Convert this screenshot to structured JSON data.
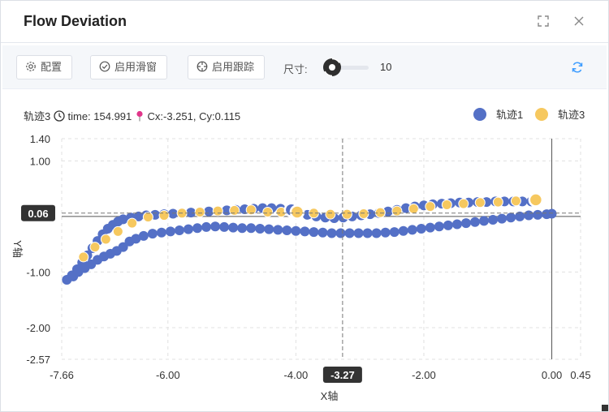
{
  "window": {
    "title": "Flow Deviation"
  },
  "toolbar": {
    "config_label": "配置",
    "slide_label": "启用滑窗",
    "track_label": "启用跟踪",
    "size_label": "尺寸:",
    "size_value": "10",
    "size_fraction": 0.2
  },
  "info": {
    "track": "轨迹3",
    "time": "time: 154.991",
    "coords": "Cx:-3.251, Cy:0.115"
  },
  "colors": {
    "series1": "#5470c6",
    "series2": "#f6c85f",
    "accent": "#409eff"
  },
  "chart_data": {
    "type": "scatter",
    "xlabel": "X轴",
    "ylabel": "Y轴",
    "xlim": [
      -7.66,
      0.45
    ],
    "ylim": [
      -2.57,
      1.4
    ],
    "x_ticks": [
      "-7.66",
      "-6.00",
      "-4.00",
      "-2.00",
      "0.00",
      "0.45"
    ],
    "y_ticks": [
      "1.40",
      "1.00",
      "-1.00",
      "-2.00",
      "-2.57"
    ],
    "grid": true,
    "legend_position": "top-right",
    "legend": [
      "轨迹1",
      "轨迹3"
    ],
    "pointer_x": "-3.27",
    "pointer_y": "0.06",
    "pointer_x_value": -3.27,
    "pointer_y_value": 0.06,
    "series": [
      {
        "name": "轨迹1",
        "color": "#5470c6",
        "outer": [
          [
            -7.58,
            -1.14
          ],
          [
            -7.5,
            -1.06
          ],
          [
            -7.42,
            -0.95
          ],
          [
            -7.34,
            -0.83
          ],
          [
            -7.26,
            -0.7
          ],
          [
            -7.18,
            -0.57
          ],
          [
            -7.1,
            -0.44
          ],
          [
            -7.02,
            -0.32
          ],
          [
            -6.94,
            -0.22
          ],
          [
            -6.86,
            -0.15
          ],
          [
            -6.78,
            -0.09
          ],
          [
            -6.7,
            -0.05
          ],
          [
            -6.58,
            -0.02
          ],
          [
            -6.46,
            0.0
          ],
          [
            -6.34,
            0.02
          ],
          [
            -6.2,
            0.03
          ],
          [
            -6.06,
            0.04
          ],
          [
            -5.92,
            0.05
          ],
          [
            -5.78,
            0.06
          ],
          [
            -5.64,
            0.07
          ],
          [
            -5.5,
            0.08
          ],
          [
            -5.36,
            0.09
          ],
          [
            -5.22,
            0.1
          ],
          [
            -5.08,
            0.11
          ],
          [
            -4.94,
            0.12
          ],
          [
            -4.8,
            0.13
          ],
          [
            -4.66,
            0.14
          ],
          [
            -4.52,
            0.15
          ],
          [
            -4.38,
            0.15
          ],
          [
            -4.24,
            0.14
          ],
          [
            -4.1,
            0.11
          ],
          [
            -3.96,
            0.07
          ],
          [
            -3.82,
            0.03
          ],
          [
            -3.68,
            0.0
          ],
          [
            -3.54,
            -0.02
          ],
          [
            -3.4,
            -0.03
          ],
          [
            -3.26,
            -0.02
          ],
          [
            -3.12,
            0.0
          ],
          [
            -2.98,
            0.02
          ],
          [
            -2.84,
            0.04
          ],
          [
            -2.7,
            0.06
          ],
          [
            -2.56,
            0.09
          ],
          [
            -2.42,
            0.12
          ],
          [
            -2.28,
            0.15
          ],
          [
            -2.14,
            0.18
          ],
          [
            -2.0,
            0.2
          ],
          [
            -1.86,
            0.22
          ],
          [
            -1.72,
            0.23
          ],
          [
            -1.58,
            0.24
          ],
          [
            -1.44,
            0.25
          ],
          [
            -1.3,
            0.25
          ],
          [
            -1.16,
            0.26
          ],
          [
            -1.02,
            0.26
          ],
          [
            -0.88,
            0.27
          ],
          [
            -0.74,
            0.27
          ],
          [
            -0.6,
            0.27
          ],
          [
            -0.46,
            0.27
          ],
          [
            -0.32,
            0.27
          ]
        ],
        "inner": [
          [
            -7.48,
            -1.08
          ],
          [
            -7.4,
            -1.0
          ],
          [
            -7.3,
            -0.93
          ],
          [
            -7.2,
            -0.86
          ],
          [
            -7.1,
            -0.78
          ],
          [
            -7.0,
            -0.72
          ],
          [
            -6.9,
            -0.67
          ],
          [
            -6.8,
            -0.62
          ],
          [
            -6.7,
            -0.55
          ],
          [
            -6.6,
            -0.45
          ],
          [
            -6.5,
            -0.4
          ],
          [
            -6.38,
            -0.35
          ],
          [
            -6.24,
            -0.31
          ],
          [
            -6.1,
            -0.29
          ],
          [
            -5.96,
            -0.27
          ],
          [
            -5.82,
            -0.25
          ],
          [
            -5.68,
            -0.23
          ],
          [
            -5.54,
            -0.21
          ],
          [
            -5.4,
            -0.19
          ],
          [
            -5.26,
            -0.18
          ],
          [
            -5.12,
            -0.19
          ],
          [
            -4.98,
            -0.2
          ],
          [
            -4.84,
            -0.21
          ],
          [
            -4.7,
            -0.21
          ],
          [
            -4.56,
            -0.22
          ],
          [
            -4.42,
            -0.23
          ],
          [
            -4.28,
            -0.24
          ],
          [
            -4.14,
            -0.25
          ],
          [
            -4.0,
            -0.26
          ],
          [
            -3.86,
            -0.27
          ],
          [
            -3.72,
            -0.28
          ],
          [
            -3.58,
            -0.29
          ],
          [
            -3.44,
            -0.3
          ],
          [
            -3.3,
            -0.3
          ],
          [
            -3.16,
            -0.3
          ],
          [
            -3.02,
            -0.3
          ],
          [
            -2.88,
            -0.3
          ],
          [
            -2.74,
            -0.3
          ],
          [
            -2.6,
            -0.29
          ],
          [
            -2.46,
            -0.28
          ],
          [
            -2.32,
            -0.26
          ],
          [
            -2.18,
            -0.24
          ],
          [
            -2.04,
            -0.22
          ],
          [
            -1.9,
            -0.2
          ],
          [
            -1.76,
            -0.18
          ],
          [
            -1.62,
            -0.16
          ],
          [
            -1.48,
            -0.14
          ],
          [
            -1.34,
            -0.12
          ],
          [
            -1.2,
            -0.1
          ],
          [
            -1.06,
            -0.08
          ],
          [
            -0.92,
            -0.06
          ],
          [
            -0.78,
            -0.04
          ],
          [
            -0.64,
            -0.02
          ],
          [
            -0.5,
            0.0
          ],
          [
            -0.36,
            0.02
          ],
          [
            -0.22,
            0.03
          ],
          [
            -0.08,
            0.04
          ],
          [
            0.0,
            0.05
          ]
        ]
      },
      {
        "name": "轨迹3",
        "color": "#f6c85f",
        "points": [
          [
            -7.32,
            -0.73
          ],
          [
            -7.14,
            -0.55
          ],
          [
            -6.97,
            -0.41
          ],
          [
            -6.78,
            -0.27
          ],
          [
            -6.56,
            -0.12
          ],
          [
            -6.31,
            -0.01
          ],
          [
            -6.06,
            0.02
          ],
          [
            -5.78,
            0.06
          ],
          [
            -5.5,
            0.08
          ],
          [
            -5.22,
            0.1
          ],
          [
            -4.96,
            0.11
          ],
          [
            -4.7,
            0.12
          ],
          [
            -4.44,
            0.08
          ],
          [
            -4.23,
            0.08
          ],
          [
            -3.98,
            0.08
          ],
          [
            -3.72,
            0.06
          ],
          [
            -3.46,
            0.04
          ],
          [
            -3.2,
            0.04
          ],
          [
            -2.94,
            0.05
          ],
          [
            -2.68,
            0.07
          ],
          [
            -2.42,
            0.1
          ],
          [
            -2.16,
            0.14
          ],
          [
            -1.9,
            0.18
          ],
          [
            -1.64,
            0.21
          ],
          [
            -1.38,
            0.23
          ],
          [
            -1.12,
            0.25
          ],
          [
            -0.84,
            0.26
          ],
          [
            -0.56,
            0.28
          ],
          [
            -0.25,
            0.3
          ]
        ]
      }
    ]
  }
}
